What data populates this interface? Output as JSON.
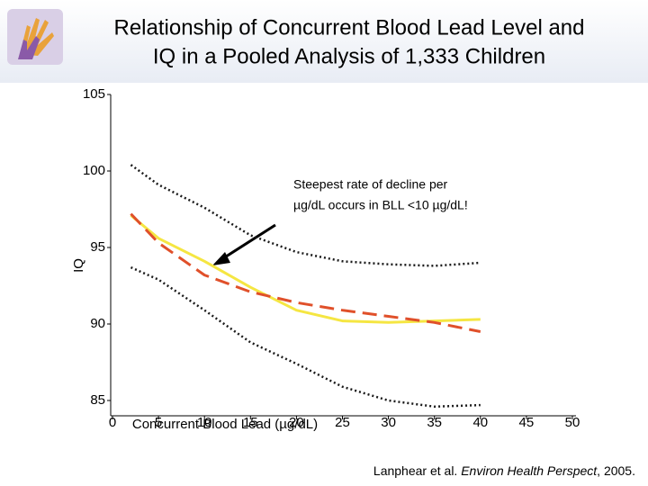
{
  "chart_data": {
    "type": "line",
    "title_lines": [
      "Relationship of Concurrent Blood Lead Level and",
      "IQ in a Pooled Analysis of 1,333 Children"
    ],
    "x_label": "Concurrent Blood Lead (µg/dL)",
    "y_label": "IQ",
    "x": [
      2,
      5,
      10,
      15,
      20,
      25,
      30,
      35,
      40
    ],
    "series": [
      {
        "color": "#1a1a1a",
        "style": "dotted",
        "values": [
          100.4,
          99.1,
          97.6,
          95.8,
          94.7,
          94.1,
          93.9,
          93.8,
          94.0
        ]
      },
      {
        "color": "#1a1a1a",
        "style": "dotted",
        "values": [
          93.7,
          92.9,
          90.9,
          88.8,
          87.4,
          85.9,
          85.0,
          84.6,
          84.7
        ]
      },
      {
        "color": "#f5e642",
        "style": "solid",
        "values": [
          97.1,
          95.6,
          94.1,
          92.4,
          90.9,
          90.2,
          90.1,
          90.2,
          90.3
        ]
      },
      {
        "color": "#e0502a",
        "style": "dashed",
        "values": [
          97.2,
          95.3,
          93.2,
          92.1,
          91.4,
          90.9,
          90.5,
          90.1,
          89.5
        ]
      }
    ],
    "xlim": [
      0,
      50
    ],
    "xticks": [
      0,
      5,
      10,
      15,
      20,
      25,
      30,
      35,
      40,
      45,
      50
    ],
    "ylim": [
      84,
      105
    ],
    "yticks": [
      85,
      90,
      95,
      100,
      105
    ],
    "annotation_lines": [
      "Steepest rate of decline per",
      "µg/dL occurs in BLL <10 µg/dL!"
    ],
    "source": {
      "authors": "Lanphear et al.",
      "journal": "Environ Health Perspect",
      "year": ", 2005."
    }
  }
}
